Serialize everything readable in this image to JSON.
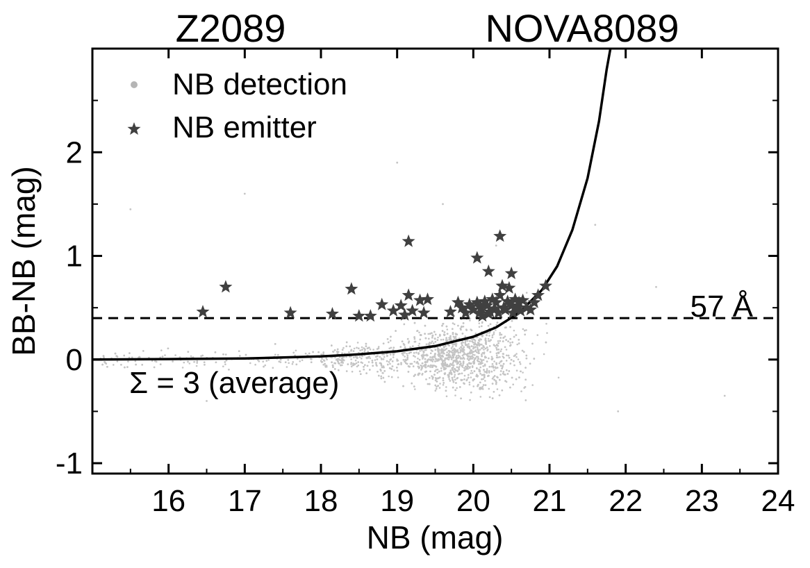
{
  "chart_data": {
    "type": "scatter",
    "top_labels": {
      "left": "Z2089",
      "right": "NOVA8089"
    },
    "xlabel": "NB (mag)",
    "ylabel": "BB-NB (mag)",
    "xlim": [
      15.0,
      24.0
    ],
    "ylim": [
      -1.1,
      3.0
    ],
    "x_ticks": [
      16,
      17,
      18,
      19,
      20,
      21,
      22,
      23,
      24
    ],
    "y_ticks": [
      -1,
      0,
      1,
      2
    ],
    "x_tick_labels": [
      "16",
      "17",
      "18",
      "19",
      "20",
      "21",
      "22",
      "23",
      "24"
    ],
    "y_tick_labels": [
      "-1",
      "0",
      "1",
      "2"
    ],
    "legend": {
      "position": "top-left",
      "entries": [
        {
          "label": "NB detection",
          "marker": "dot",
          "color": "#b5b5b5"
        },
        {
          "label": "NB emitter",
          "marker": "star",
          "color": "#404040"
        }
      ]
    },
    "annotations": {
      "ew_cut_label": "57 Å",
      "sigma_label": "Σ = 3 (average)"
    },
    "threshold": {
      "name": "57 Å equivalent-width cut",
      "y": 0.4
    },
    "sigma_curve": {
      "name": "Σ = 3 (average)",
      "x": [
        15.0,
        16.0,
        17.0,
        18.0,
        18.5,
        19.0,
        19.5,
        20.0,
        20.3,
        20.6,
        20.9,
        21.1,
        21.3,
        21.5,
        21.65,
        21.75,
        21.8
      ],
      "y": [
        0.0,
        0.005,
        0.01,
        0.03,
        0.05,
        0.08,
        0.13,
        0.22,
        0.31,
        0.45,
        0.67,
        0.9,
        1.25,
        1.75,
        2.3,
        2.8,
        3.0
      ]
    },
    "series": [
      {
        "name": "NB emitter",
        "x": [
          16.45,
          16.75,
          17.6,
          18.15,
          18.4,
          18.5,
          18.65,
          18.8,
          18.95,
          19.05,
          19.1,
          19.15,
          19.2,
          19.3,
          19.35,
          19.4,
          19.7,
          19.8,
          19.85,
          19.9,
          19.95,
          20.0,
          20.05,
          20.08,
          20.1,
          20.12,
          20.15,
          20.18,
          20.2,
          20.22,
          20.25,
          20.28,
          20.3,
          20.33,
          20.35,
          20.38,
          20.4,
          20.42,
          20.45,
          20.47,
          20.5,
          20.52,
          20.55,
          20.57,
          20.6,
          20.62,
          20.65,
          20.7,
          20.75,
          20.8,
          20.85,
          20.95,
          19.15,
          20.35,
          20.05,
          20.2,
          20.5
        ],
        "y": [
          0.46,
          0.7,
          0.45,
          0.44,
          0.68,
          0.42,
          0.42,
          0.53,
          0.47,
          0.52,
          0.43,
          0.62,
          0.47,
          0.57,
          0.45,
          0.58,
          0.46,
          0.55,
          0.5,
          0.45,
          0.53,
          0.48,
          0.55,
          0.45,
          0.5,
          0.42,
          0.56,
          0.52,
          0.44,
          0.46,
          0.58,
          0.49,
          0.55,
          0.45,
          0.62,
          0.71,
          0.5,
          0.48,
          0.56,
          0.69,
          0.52,
          0.45,
          0.58,
          0.5,
          0.55,
          0.47,
          0.57,
          0.5,
          0.48,
          0.55,
          0.62,
          0.71,
          1.14,
          1.19,
          0.98,
          0.85,
          0.83
        ]
      }
    ],
    "detection_cloud": {
      "name": "NB detection",
      "count": 3000,
      "description_of_distribution": "dense grey dots concentrated at NB 19-21 mag with scatter up to +/-0.4 mag around the Σ curve, sparser at brighter magnitudes",
      "seed": 20891
    }
  }
}
